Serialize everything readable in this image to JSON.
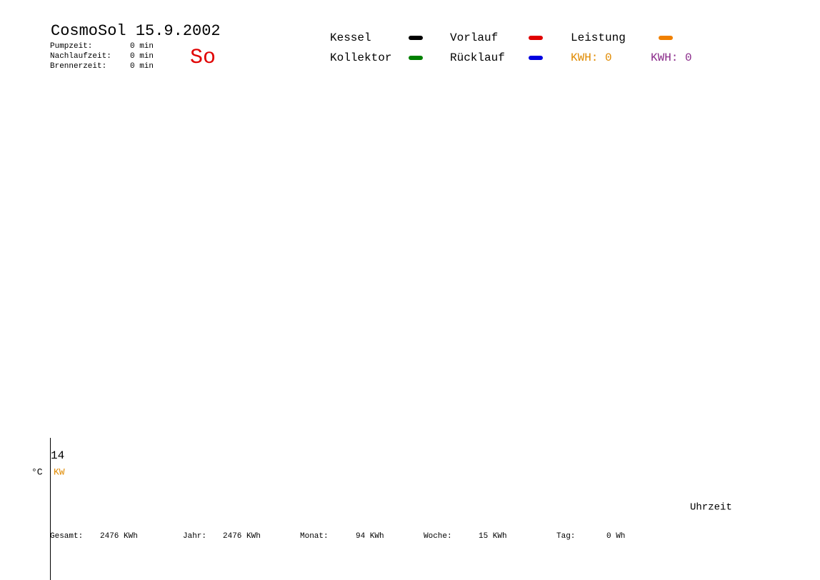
{
  "header": {
    "title": "CosmoSol 15.9.2002",
    "day": "So",
    "times": [
      {
        "label": "Pumpzeit:",
        "value": "0 min"
      },
      {
        "label": "Nachlaufzeit:",
        "value": "0 min"
      },
      {
        "label": "Brennerzeit:",
        "value": "0 min"
      }
    ]
  },
  "legend": [
    {
      "label": "Kessel",
      "color": "#000000"
    },
    {
      "label": "Vorlauf",
      "color": "#e00000"
    },
    {
      "label": "Leistung",
      "color": "#f08000"
    },
    {
      "label": "Kollektor",
      "color": "#008000"
    },
    {
      "label": "Rücklauf",
      "color": "#0000e0"
    }
  ],
  "kwh": [
    {
      "text": "KWH: 0",
      "color": "#e08a00"
    },
    {
      "text": "KWH: 0",
      "color": "#8a2a8a"
    }
  ],
  "axis": {
    "tick": "14",
    "unit_left": "°C",
    "unit_right": "KW",
    "x_label": "Uhrzeit"
  },
  "totals": [
    {
      "label": "Gesamt:",
      "value": "2476 KWh"
    },
    {
      "label": "Jahr:",
      "value": "2476 KWh"
    },
    {
      "label": "Monat:",
      "value": "94 KWh"
    },
    {
      "label": "Woche:",
      "value": "15 KWh"
    },
    {
      "label": "Tag:",
      "value": "0 Wh"
    }
  ]
}
